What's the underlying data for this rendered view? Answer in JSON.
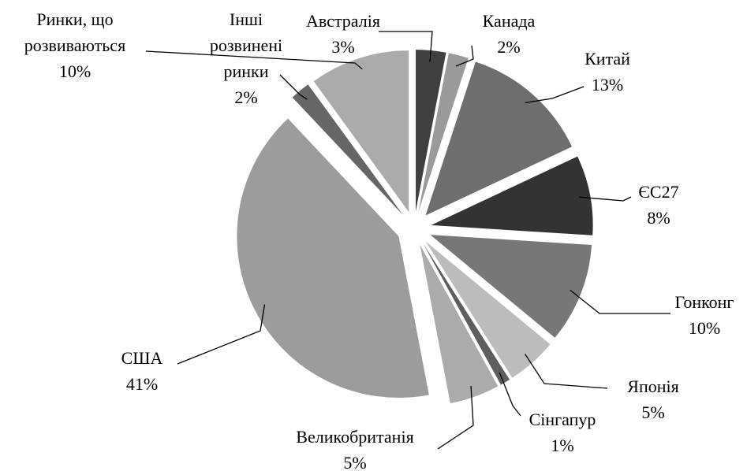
{
  "chart_data": {
    "type": "pie",
    "categories": [
      "Австралія",
      "Канада",
      "Китай",
      "ЄС27",
      "Гонконг",
      "Японія",
      "Сінгапур",
      "Великобританія",
      "США",
      "Інші розвинені ринки",
      "Ринки, що розвиваються"
    ],
    "values": [
      3,
      2,
      13,
      8,
      10,
      5,
      1,
      5,
      41,
      2,
      10
    ],
    "value_labels": [
      "3%",
      "2%",
      "13%",
      "8%",
      "10%",
      "5%",
      "1%",
      "5%",
      "41%",
      "2%",
      "10%"
    ],
    "colors": [
      "#404040",
      "#9a9a9a",
      "#6e6e6e",
      "#333333",
      "#777777",
      "#bcbcbc",
      "#5e5e5e",
      "#ababab",
      "#9c9c9c",
      "#666666",
      "#ababab"
    ]
  }
}
